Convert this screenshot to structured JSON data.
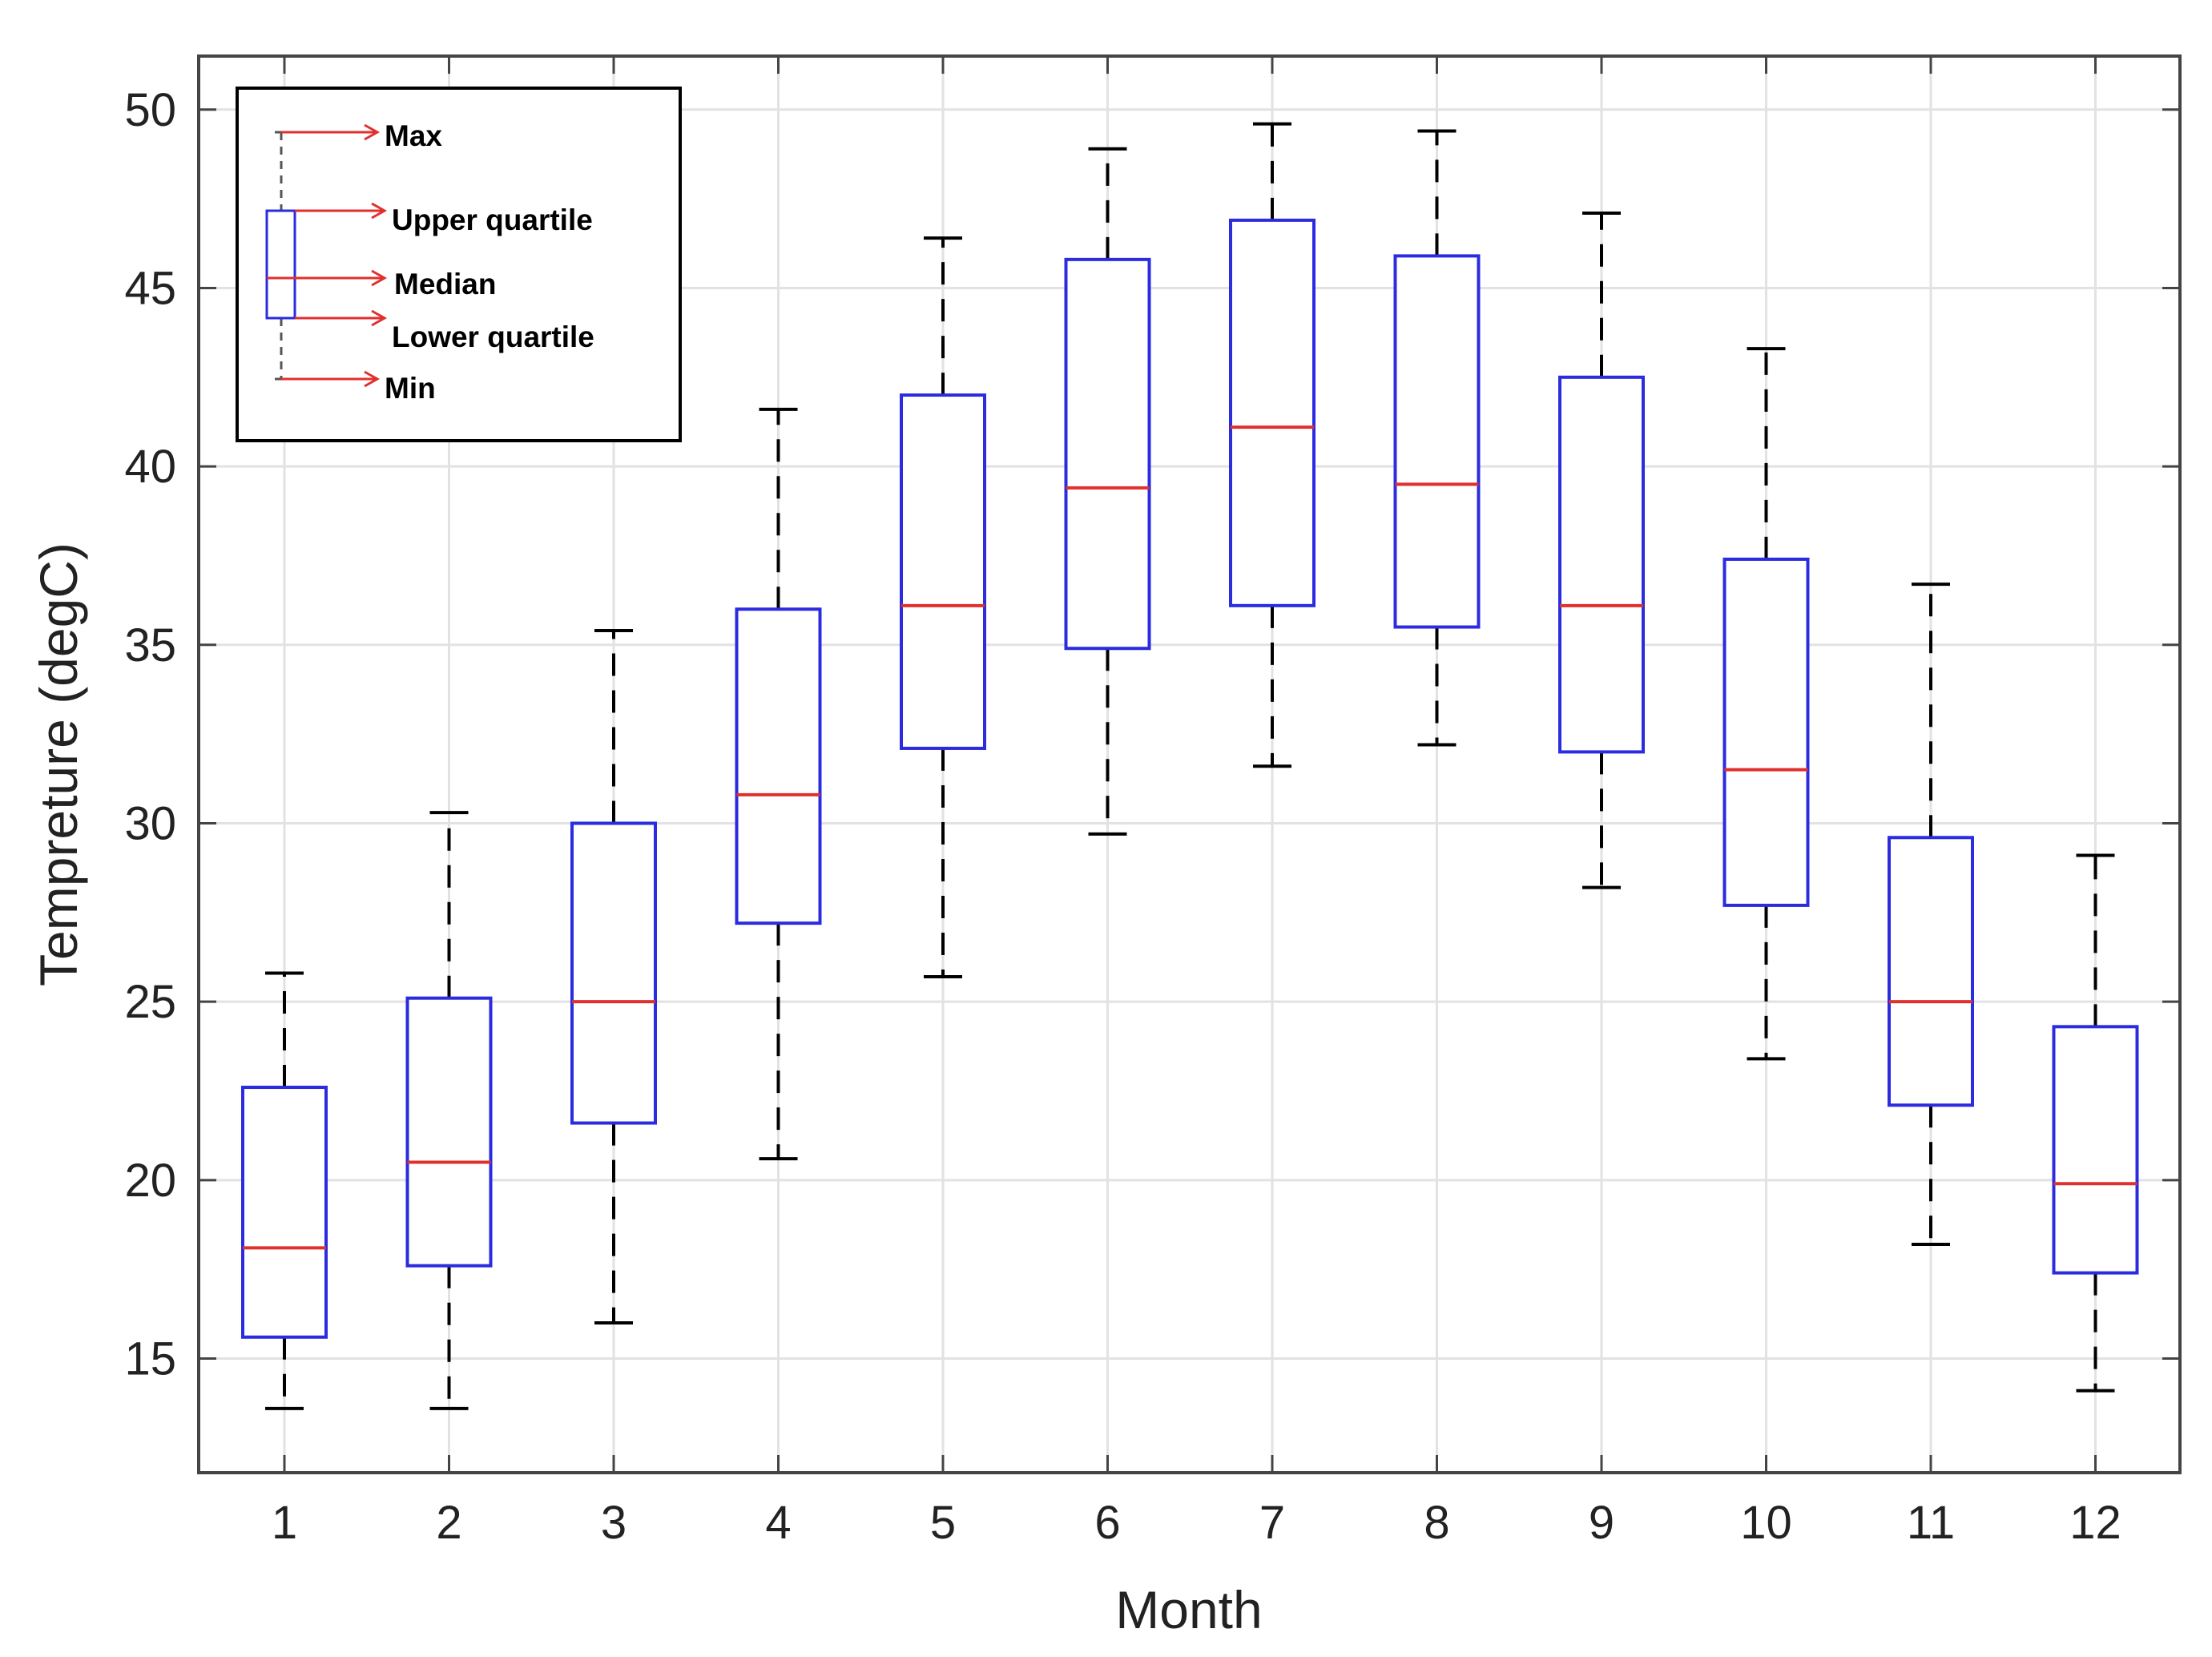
{
  "chart_data": {
    "type": "boxplot",
    "title": "",
    "xlabel": "Month",
    "ylabel": "Tempreture (degC)",
    "categories": [
      "1",
      "2",
      "3",
      "4",
      "5",
      "6",
      "7",
      "8",
      "9",
      "10",
      "11",
      "12"
    ],
    "ylim": [
      11.8,
      51.5
    ],
    "yticks": [
      15,
      20,
      25,
      30,
      35,
      40,
      45,
      50
    ],
    "grid": true,
    "boxes": [
      {
        "min": 13.6,
        "q1": 15.6,
        "median": 18.1,
        "q3": 22.6,
        "max": 25.8
      },
      {
        "min": 13.6,
        "q1": 17.6,
        "median": 20.5,
        "q3": 25.1,
        "max": 30.3
      },
      {
        "min": 16.0,
        "q1": 21.6,
        "median": 25.0,
        "q3": 30.0,
        "max": 35.4
      },
      {
        "min": 20.6,
        "q1": 27.2,
        "median": 30.8,
        "q3": 36.0,
        "max": 41.6
      },
      {
        "min": 25.7,
        "q1": 32.1,
        "median": 36.1,
        "q3": 42.0,
        "max": 46.4
      },
      {
        "min": 29.7,
        "q1": 34.9,
        "median": 39.4,
        "q3": 45.8,
        "max": 48.9
      },
      {
        "min": 31.6,
        "q1": 36.1,
        "median": 41.1,
        "q3": 46.9,
        "max": 49.6
      },
      {
        "min": 32.2,
        "q1": 35.5,
        "median": 39.5,
        "q3": 45.9,
        "max": 49.4
      },
      {
        "min": 28.2,
        "q1": 32.0,
        "median": 36.1,
        "q3": 42.5,
        "max": 47.1
      },
      {
        "min": 23.4,
        "q1": 27.7,
        "median": 31.5,
        "q3": 37.4,
        "max": 43.3
      },
      {
        "min": 18.2,
        "q1": 22.1,
        "median": 25.0,
        "q3": 29.6,
        "max": 36.7
      },
      {
        "min": 14.1,
        "q1": 17.4,
        "median": 19.9,
        "q3": 24.3,
        "max": 29.1
      }
    ],
    "legend": {
      "placement": "top-left",
      "labels": {
        "max": "Max",
        "upper_quartile": "Upper quartile",
        "median": "Median",
        "lower_quartile": "Lower quartile",
        "min": "Min"
      }
    },
    "colors": {
      "box": "#2b2be0",
      "median": "#e0302e",
      "whisker": "#000000",
      "grid": "#e2e2e2",
      "axis": "#444444",
      "legend_arrow": "#e0302e"
    }
  }
}
